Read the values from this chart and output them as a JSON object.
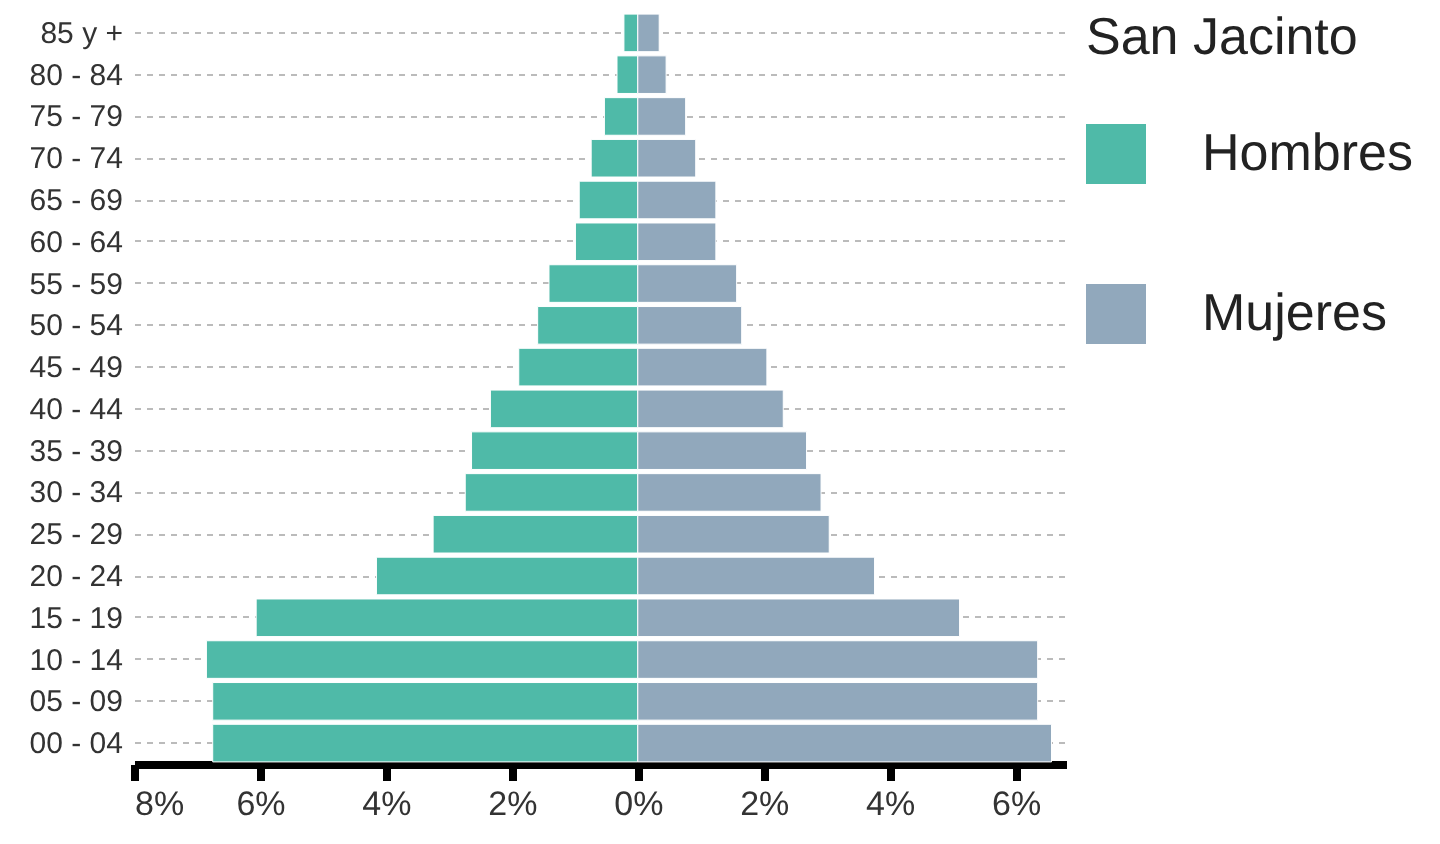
{
  "chart_data": {
    "type": "bar",
    "orientation": "horizontal",
    "stacked": true,
    "legend_title": "San Jacinto",
    "legend": "right",
    "grid": "y",
    "categories": [
      "85 y +",
      "80 - 84",
      "75 - 79",
      "70 - 74",
      "65 - 69",
      "60 - 64",
      "55 - 59",
      "50 - 54",
      "45 - 49",
      "40 - 44",
      "35 - 39",
      "30 - 34",
      "25 - 29",
      "20 - 24",
      "15 - 19",
      "10 - 14",
      "05 - 09",
      "00 - 04"
    ],
    "series": [
      {
        "name": "Hombres",
        "color": "#4fbaa8",
        "values": [
          -0.22,
          -0.33,
          -0.53,
          -0.74,
          -0.93,
          -0.99,
          -1.41,
          -1.59,
          -1.89,
          -2.34,
          -2.64,
          -2.74,
          -3.25,
          -4.15,
          -6.06,
          -6.85,
          -6.75,
          -6.75
        ]
      },
      {
        "name": "Mujeres",
        "color": "#91a8bc",
        "values": [
          0.34,
          0.45,
          0.76,
          0.92,
          1.24,
          1.24,
          1.57,
          1.65,
          2.05,
          2.31,
          2.68,
          2.91,
          3.04,
          3.76,
          5.11,
          6.35,
          6.35,
          6.57
        ]
      }
    ],
    "xlim": [
      -8,
      6.8
    ],
    "xticks": [
      {
        "value": -8,
        "label": "8%"
      },
      {
        "value": -6,
        "label": "6%"
      },
      {
        "value": -4,
        "label": "4%"
      },
      {
        "value": -2,
        "label": "2%"
      },
      {
        "value": 0,
        "label": "0%"
      },
      {
        "value": 2,
        "label": "2%"
      },
      {
        "value": 4,
        "label": "4%"
      },
      {
        "value": 6,
        "label": "6%"
      }
    ]
  }
}
